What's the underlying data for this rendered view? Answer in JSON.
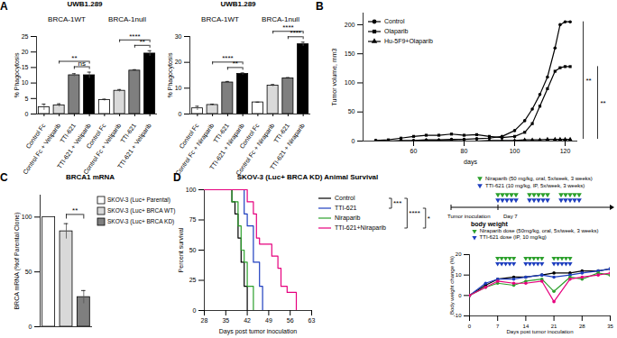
{
  "chart_data": [
    {
      "panel": "A",
      "type": "bar",
      "title": "UWB1.289",
      "groups": [
        "BRCA-1WT",
        "BRCA-1null"
      ],
      "categories": [
        "Control Fc",
        "Control Fc + Veliparib",
        "TTI-621",
        "TTI-621 + Veliparib",
        "Control Fc",
        "Control Fc + Veliparib",
        "TTI-621",
        "TTI-621 + Veliparib"
      ],
      "values": [
        2.2,
        2.8,
        12.5,
        12.5,
        4.5,
        7.5,
        14.0,
        19.5
      ],
      "errors": [
        1.0,
        0.5,
        0.5,
        1.0,
        0.3,
        0.4,
        0.3,
        0.9
      ],
      "colors": [
        "#ffffff",
        "#d9d9d9",
        "#7f7f7f",
        "#000000",
        "#ffffff",
        "#d9d9d9",
        "#7f7f7f",
        "#000000"
      ],
      "y_label": "% Phagocytosis",
      "ylim": [
        0,
        25
      ],
      "yticks": [
        0,
        5,
        10,
        15,
        20,
        25
      ],
      "annotations": [
        {
          "text": "ns",
          "from": 2,
          "to": 3
        },
        {
          "text": "**",
          "from": 1,
          "to": 3
        },
        {
          "text": "**",
          "from": 6,
          "to": 7
        },
        {
          "text": "****",
          "from": 5,
          "to": 7
        }
      ]
    },
    {
      "type": "bar",
      "title": "UWB1.289",
      "groups": [
        "BRCA-1WT",
        "BRCA-1null"
      ],
      "categories": [
        "Control Fc",
        "Control Fc + Niraparib",
        "TTI-621",
        "TTI-621 + Niraparib",
        "Control Fc",
        "Control Fc + Niraparib",
        "TTI-621",
        "TTI-621 + Niraparib"
      ],
      "values": [
        2.2,
        3.5,
        12.2,
        15.5,
        4.5,
        11.0,
        13.8,
        27.0
      ],
      "errors": [
        0.8,
        0.3,
        0.4,
        0.4,
        0.1,
        0.4,
        0.3,
        0.8
      ],
      "colors": [
        "#ffffff",
        "#d9d9d9",
        "#7f7f7f",
        "#000000",
        "#ffffff",
        "#d9d9d9",
        "#7f7f7f",
        "#000000"
      ],
      "y_label": "% Phagocytosis",
      "ylim": [
        0,
        30
      ],
      "yticks": [
        0,
        10,
        20,
        30
      ],
      "annotations": [
        {
          "text": "**",
          "from": 2,
          "to": 3
        },
        {
          "text": "****",
          "from": 1,
          "to": 3
        },
        {
          "text": "****",
          "from": 6,
          "to": 7
        },
        {
          "text": "****",
          "from": 5,
          "to": 7
        }
      ]
    },
    {
      "panel": "B",
      "type": "line",
      "x_label": "days",
      "y_label": "Tumor volume, mm3",
      "xlim": [
        40,
        125
      ],
      "xticks": [
        60,
        80,
        100,
        120
      ],
      "ylim": [
        0,
        220
      ],
      "yticks": [
        0,
        50,
        100,
        150,
        200
      ],
      "legend": "upper left",
      "x": [
        45,
        50,
        55,
        60,
        65,
        70,
        75,
        80,
        85,
        90,
        95,
        100,
        104,
        107,
        110,
        113,
        116,
        118,
        120,
        122
      ],
      "series": [
        {
          "name": "Control",
          "color": "#000000",
          "marker": "circle",
          "values": [
            0,
            0,
            1,
            1,
            2,
            2,
            3,
            3,
            4,
            5,
            8,
            18,
            35,
            55,
            80,
            110,
            160,
            200,
            205,
            205
          ]
        },
        {
          "name": "Olaparib",
          "color": "#000000",
          "marker": "square",
          "values": [
            1,
            2,
            5,
            8,
            10,
            10,
            12,
            10,
            11,
            8,
            6,
            8,
            15,
            30,
            60,
            90,
            120,
            126,
            128,
            128
          ]
        },
        {
          "name": "Hu-5F9+Olaparib",
          "color": "#000000",
          "marker": "triangle",
          "values": [
            0,
            0,
            0,
            0,
            1,
            1,
            1,
            0,
            0,
            1,
            1,
            1,
            2,
            2,
            2,
            3,
            3,
            3,
            3,
            3
          ]
        }
      ],
      "annotations": [
        {
          "text": "**",
          "between": [
            "Control",
            "Hu-5F9+Olaparib"
          ]
        },
        {
          "text": "**",
          "between": [
            "Olaparib",
            "Hu-5F9+Olaparib"
          ]
        }
      ]
    },
    {
      "panel": "C",
      "type": "bar",
      "title": "BRCA1 mRNA",
      "categories": [
        "SKOV-3 (Luc+ Parental)",
        "SKOV-3 (Luc+ BRCA WT)",
        "SKOV-3 (Luc+ BRCA KD)"
      ],
      "values": [
        100,
        87,
        27
      ],
      "errors": [
        0,
        7,
        6
      ],
      "colors": [
        "#ffffff",
        "#d9d9d9",
        "#7f7f7f"
      ],
      "y_label": "BRCA mRNA (%of Parental Clone)",
      "ylim": [
        0,
        120
      ],
      "yticks": [
        0,
        50,
        100
      ],
      "tick_labels": "y",
      "legend": "right",
      "annotations": [
        {
          "text": "**",
          "from": 1,
          "to": 2
        }
      ]
    },
    {
      "panel": "D",
      "type": "line",
      "title": "SKOV-3 (Luc+ BRCA KD) Animal Survival",
      "x_label": "Days post tumor inoculation",
      "y_label": "Percent survival",
      "line_style": "step",
      "xlim": [
        28,
        63
      ],
      "xticks": [
        28,
        35,
        42,
        49,
        56,
        63
      ],
      "ylim": [
        0,
        100
      ],
      "yticks": [
        0,
        25,
        50,
        75,
        100
      ],
      "legend": "right",
      "series": [
        {
          "name": "Control",
          "color": "#000000",
          "x": [
            28,
            36,
            37,
            38,
            39,
            40,
            41,
            42
          ],
          "values": [
            100,
            100,
            90,
            80,
            60,
            40,
            20,
            0
          ]
        },
        {
          "name": "TTI-621",
          "color": "#1f3fbf",
          "x": [
            28,
            40,
            41,
            42,
            44,
            46,
            47
          ],
          "values": [
            100,
            100,
            80,
            70,
            40,
            20,
            0
          ]
        },
        {
          "name": "Niraparib",
          "color": "#2ca02c",
          "x": [
            28,
            37,
            39,
            40,
            41,
            42,
            44
          ],
          "values": [
            100,
            90,
            70,
            50,
            40,
            20,
            0
          ]
        },
        {
          "name": "TTI-621+Niraparib",
          "color": "#e6007e",
          "x": [
            28,
            41,
            42,
            44,
            45,
            46,
            50,
            52,
            53,
            55,
            58
          ],
          "values": [
            100,
            100,
            90,
            80,
            60,
            55,
            45,
            35,
            20,
            15,
            0
          ]
        }
      ],
      "annotations": [
        {
          "text": "***",
          "between": [
            "Control",
            "TTI-621"
          ]
        },
        {
          "text": "****",
          "between": [
            "Control",
            "TTI-621+Niraparib"
          ]
        },
        {
          "text": "*",
          "between": [
            "TTI-621",
            "TTI-621+Niraparib"
          ]
        }
      ]
    },
    {
      "type": "line",
      "title": "body weight",
      "x_label": "Days post tumor inoculation",
      "y_label": "Body weight change (%)",
      "xlim": [
        0,
        35
      ],
      "xticks": [
        0,
        7,
        14,
        21,
        28,
        35
      ],
      "ylim": [
        -10,
        20
      ],
      "yticks": [
        -10,
        0,
        10,
        20
      ],
      "x": [
        0,
        4,
        7,
        11,
        14,
        18,
        21,
        25,
        28,
        32,
        35
      ],
      "series": [
        {
          "color": "#000000",
          "marker": "circle",
          "values": [
            0,
            5,
            8,
            9,
            9,
            10,
            11,
            11,
            12,
            12,
            13
          ]
        },
        {
          "color": "#1f3fbf",
          "marker": "circle",
          "values": [
            0,
            6,
            8,
            8,
            9,
            10,
            9,
            10,
            11,
            12,
            13
          ]
        },
        {
          "color": "#2ca02c",
          "marker": "circle",
          "values": [
            0,
            4,
            6,
            5,
            7,
            8,
            2,
            9,
            8,
            11,
            10
          ]
        },
        {
          "color": "#e6007e",
          "marker": "circle",
          "values": [
            0,
            4,
            7,
            6,
            6,
            7,
            -3,
            8,
            9,
            10,
            11
          ]
        }
      ],
      "doses": [
        {
          "name": "Niraparib dose (50mg/kg, oral, 5x/week, 3 weeks)",
          "color": "#2ca02c",
          "days": [
            7,
            8,
            9,
            10,
            11,
            14,
            15,
            16,
            17,
            18,
            21,
            22,
            23,
            24,
            25
          ]
        },
        {
          "name": "TTI-621 dose (IP, 10 mg/kg)",
          "color": "#1f3fbf",
          "days": [
            7,
            8,
            9,
            10,
            11,
            14,
            15,
            16,
            17,
            18,
            21,
            22,
            23,
            24,
            25
          ]
        }
      ]
    }
  ],
  "schematic": {
    "niraparib": "Niraparib (50 mg/kg, oral, 5x/week, 3 weeks)",
    "tti621": "TTI-621 (10 mg/kg, IP, 5x/week, 3 weeks)",
    "inoculation": "Tumor inoculation",
    "day": "Day 7"
  }
}
